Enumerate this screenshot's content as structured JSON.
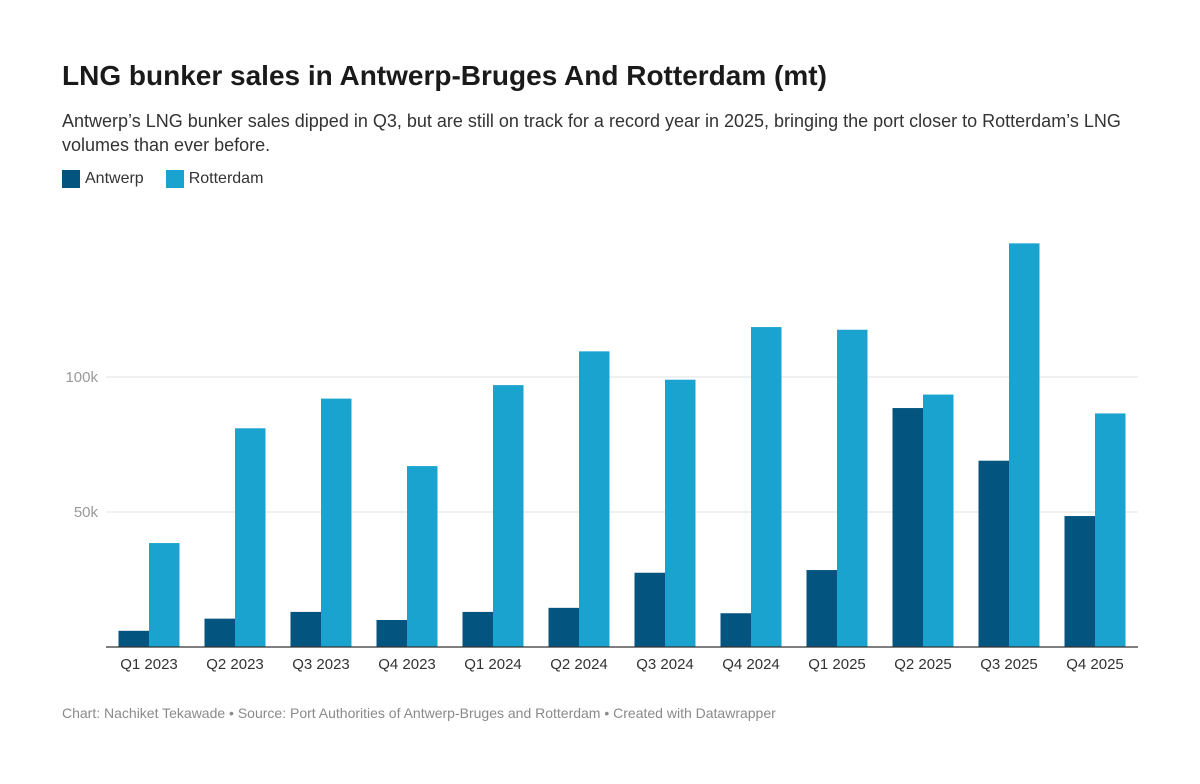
{
  "chart_data": {
    "type": "bar",
    "title": "LNG bunker sales in Antwerp-Bruges And Rotterdam (mt)",
    "subtitle": "Antwerp’s LNG bunker sales dipped in Q3, but are still on track for a record year in 2025, bringing the port closer to Rotterdam’s LNG volumes than ever before.",
    "categories": [
      "Q1 2023",
      "Q2 2023",
      "Q3 2023",
      "Q4 2023",
      "Q1 2024",
      "Q2 2024",
      "Q3 2024",
      "Q4 2024",
      "Q1 2025",
      "Q2 2025",
      "Q3 2025",
      "Q4 2025"
    ],
    "series": [
      {
        "name": "Antwerp",
        "color": "#03557f",
        "values": [
          6000,
          10500,
          13000,
          10000,
          13000,
          14500,
          27500,
          12500,
          28500,
          88500,
          69000,
          48500
        ]
      },
      {
        "name": "Rotterdam",
        "color": "#1ba3cf",
        "values": [
          38500,
          81000,
          92000,
          67000,
          97000,
          109500,
          99000,
          118500,
          117500,
          93500,
          149500,
          86500
        ]
      }
    ],
    "yticks": [
      {
        "value": 50000,
        "label": "50k"
      },
      {
        "value": 100000,
        "label": "100k"
      }
    ],
    "ylim": [
      0,
      150000
    ],
    "xlabel": "",
    "ylabel": "",
    "grid": true,
    "legend_position": "top-left"
  },
  "footer": "Chart: Nachiket Tekawade • Source: Port Authorities of Antwerp-Bruges and Rotterdam • Created with Datawrapper"
}
